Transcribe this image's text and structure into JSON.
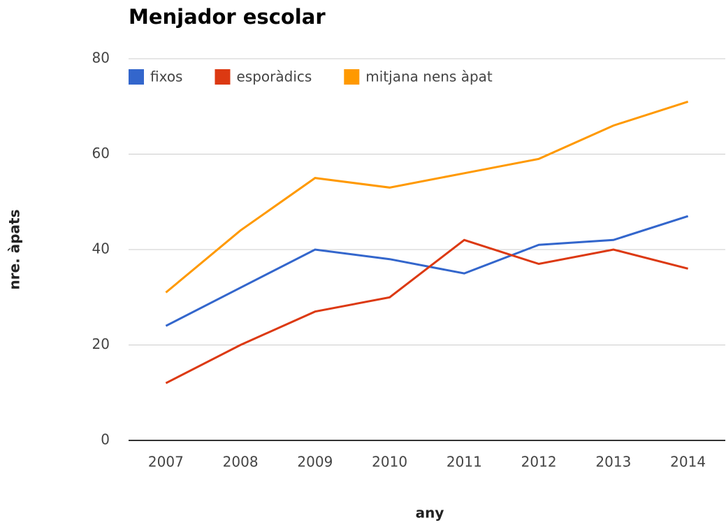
{
  "chart_data": {
    "type": "line",
    "title": "Menjador escolar",
    "x_label": "any",
    "y_label": "nre. àpats",
    "categories": [
      "2007",
      "2008",
      "2009",
      "2010",
      "2011",
      "2012",
      "2013",
      "2014"
    ],
    "series": [
      {
        "name": "fixos",
        "color": "#3366cc",
        "values": [
          24,
          32,
          40,
          38,
          35,
          41,
          42,
          47
        ]
      },
      {
        "name": "esporàdics",
        "color": "#dc3912",
        "values": [
          12,
          20,
          27,
          30,
          42,
          37,
          40,
          36
        ]
      },
      {
        "name": "mitjana nens àpat",
        "color": "#ff9900",
        "values": [
          31,
          44,
          55,
          53,
          56,
          59,
          66,
          71
        ]
      }
    ],
    "ylim": [
      0,
      80
    ],
    "yticks": [
      0,
      20,
      40,
      60,
      80
    ],
    "grid": true,
    "legend": "top"
  }
}
